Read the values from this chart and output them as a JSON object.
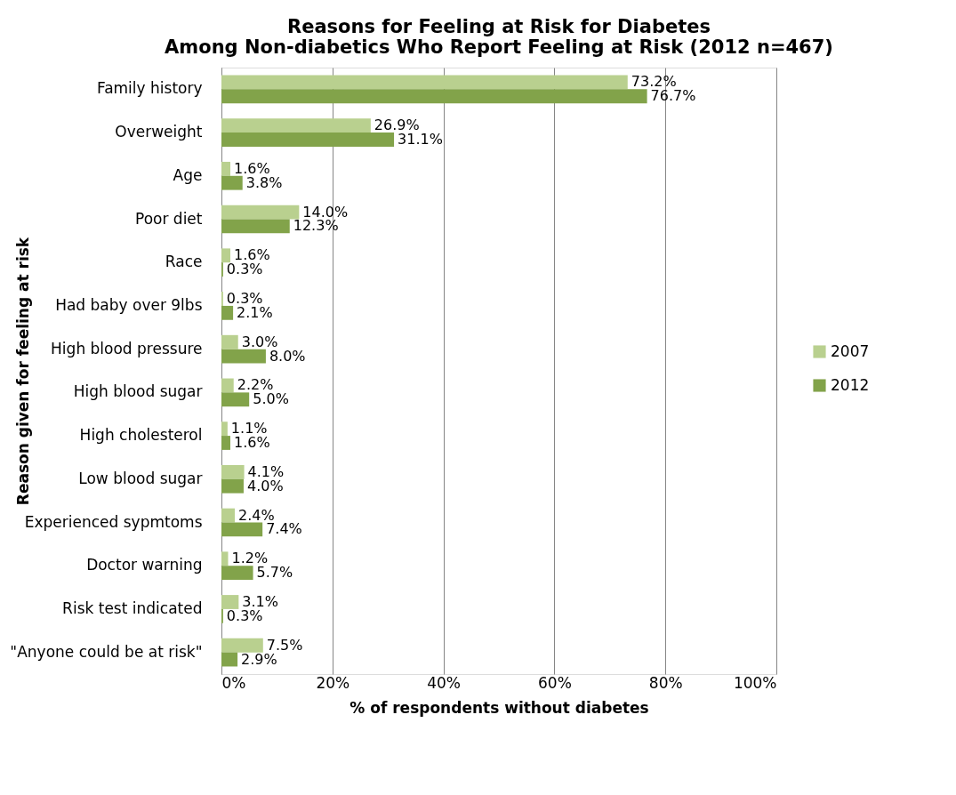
{
  "chart_data": {
    "type": "bar",
    "orientation": "horizontal",
    "title": [
      "Reasons for Feeling at Risk for Diabetes",
      "Among Non-diabetics Who Report Feeling at Risk (2012 n=467)"
    ],
    "xlabel": "% of respondents without diabetes",
    "ylabel": "Reason given for feeling at risk",
    "categories": [
      "Family history",
      "Overweight",
      "Age",
      "Poor diet",
      "Race",
      "Had baby over 9lbs",
      "High blood pressure",
      "High blood sugar",
      "High cholesterol",
      "Low blood sugar",
      "Experienced sypmtoms",
      "Doctor warning",
      "Risk test indicated",
      "\"Anyone could be at risk\""
    ],
    "series": [
      {
        "name": "2007",
        "color": "#b9d08f",
        "values": [
          73.2,
          26.9,
          1.6,
          14.0,
          1.6,
          0.3,
          3.0,
          2.2,
          1.1,
          4.1,
          2.4,
          1.2,
          3.1,
          7.5
        ],
        "value_labels": [
          "73.2%",
          "26.9%",
          "1.6%",
          "14.0%",
          "1.6%",
          "0.3%",
          "3.0%",
          "2.2%",
          "1.1%",
          "4.1%",
          "2.4%",
          "1.2%",
          "3.1%",
          "7.5%"
        ]
      },
      {
        "name": "2012",
        "color": "#82a34a",
        "values": [
          76.7,
          31.1,
          3.8,
          12.3,
          0.3,
          2.1,
          8.0,
          5.0,
          1.6,
          4.0,
          7.4,
          5.7,
          0.3,
          2.9
        ],
        "value_labels": [
          "76.7%",
          "31.1%",
          "3.8%",
          "12.3%",
          "0.3%",
          "2.1%",
          "8.0%",
          "5.0%",
          "1.6%",
          "4.0%",
          "7.4%",
          "5.7%",
          "0.3%",
          "2.9%"
        ]
      }
    ],
    "xlim": [
      0,
      100
    ],
    "xticks": [
      {
        "value": 0,
        "label": "0%"
      },
      {
        "value": 20,
        "label": "20%"
      },
      {
        "value": 40,
        "label": "40%"
      },
      {
        "value": 60,
        "label": "60%"
      },
      {
        "value": 80,
        "label": "80%"
      },
      {
        "value": 100,
        "label": "100%"
      }
    ],
    "grid": "x",
    "legend": "right"
  }
}
